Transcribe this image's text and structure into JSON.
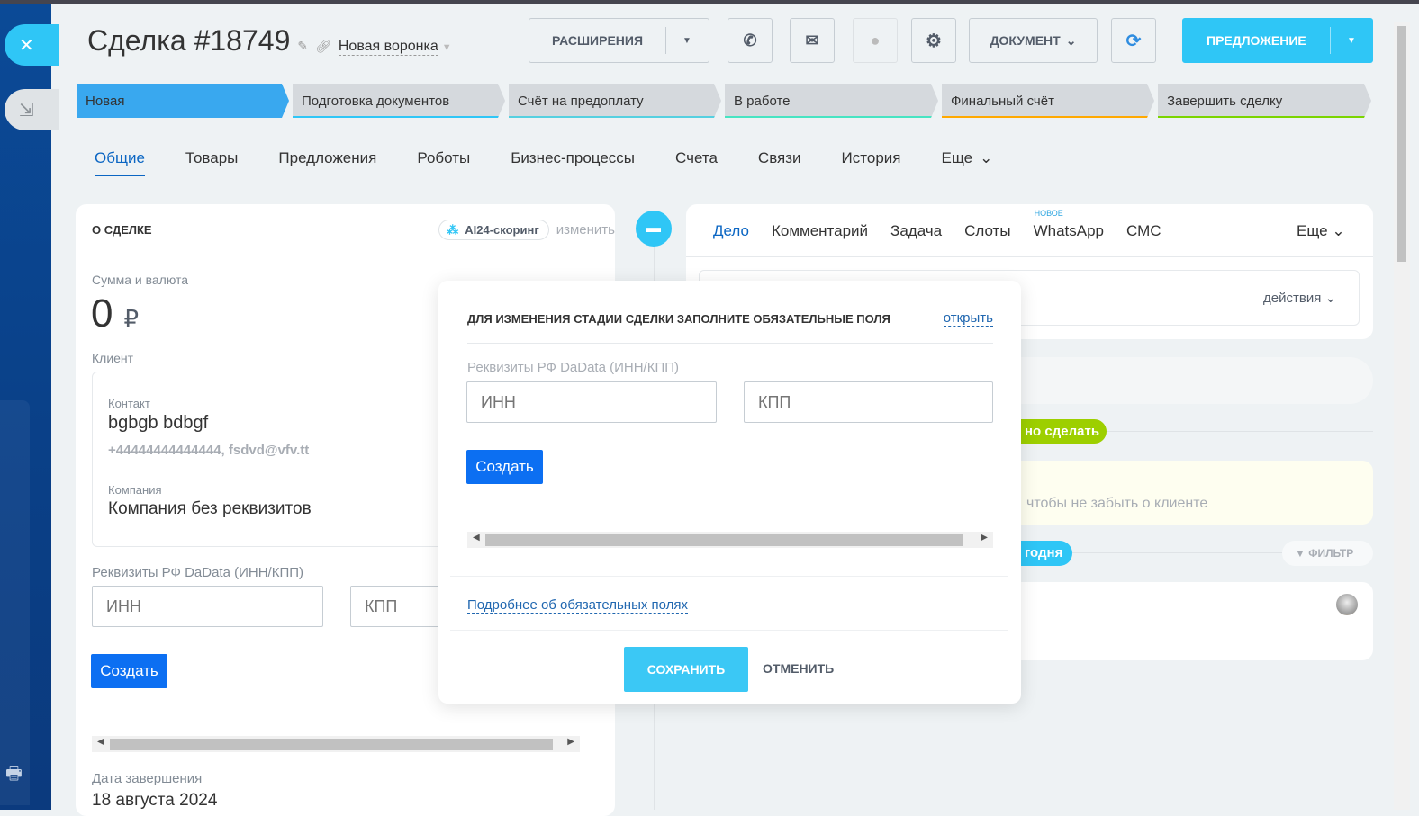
{
  "header": {
    "title": "Сделка #18749",
    "funnel": "Новая воронка"
  },
  "toolbar": {
    "extensions": "РАСШИРЕНИЯ",
    "document": "ДОКУМЕНТ",
    "offer": "ПРЕДЛОЖЕНИЕ"
  },
  "stages": [
    {
      "label": "Новая",
      "color": "#39a8ef"
    },
    {
      "label": "Подготовка документов",
      "color": "#2fc6f6"
    },
    {
      "label": "Счёт на предоплату",
      "color": "#55d0e0"
    },
    {
      "label": "В работе",
      "color": "#47e4c2"
    },
    {
      "label": "Финальный счёт",
      "color": "#ffa900"
    },
    {
      "label": "Завершить сделку",
      "color": "#7bd500"
    }
  ],
  "tabs": [
    "Общие",
    "Товары",
    "Предложения",
    "Роботы",
    "Бизнес-процессы",
    "Счета",
    "Связи",
    "История",
    "Еще"
  ],
  "about": {
    "title": "О СДЕЛКЕ",
    "ai": "AI24-скоринг",
    "edit": "изменить",
    "sum_label": "Сумма и валюта",
    "sum": "0",
    "currency": "₽",
    "client_label": "Клиент",
    "contact_label": "Контакт",
    "contact": "bgbgb bdbgf",
    "contact_info": "+44444444444444, fsdvd@vfv.tt",
    "company_label": "Компания",
    "company": "Компания без реквизитов",
    "req_label": "Реквизиты РФ DaData (ИНН/КПП)",
    "inn_ph": "ИНН",
    "kpp_ph": "КПП",
    "create": "Создать",
    "close_date_label": "Дата завершения",
    "close_date": "18 августа 2024"
  },
  "timeline": {
    "tabs": [
      "Дело",
      "Комментарий",
      "Задача",
      "Слоты",
      "WhatsApp",
      "СМС"
    ],
    "new_badge": "НОВОЕ",
    "more": "Еще",
    "actions": "действия",
    "todo": "но сделать",
    "hint": "чтобы не забыть о клиенте",
    "today": "годня",
    "filter": "ФИЛЬТР"
  },
  "popup": {
    "title": "ДЛЯ ИЗМЕНЕНИЯ СТАДИИ СДЕЛКИ ЗАПОЛНИТЕ ОБЯЗАТЕЛЬНЫЕ ПОЛЯ",
    "open": "открыть",
    "req_label": "Реквизиты РФ DaData (ИНН/КПП)",
    "inn_ph": "ИНН",
    "kpp_ph": "КПП",
    "create": "Создать",
    "more_link": "Подробнее об обязательных полях",
    "save": "СОХРАНИТЬ",
    "cancel": "ОТМЕНИТЬ"
  }
}
